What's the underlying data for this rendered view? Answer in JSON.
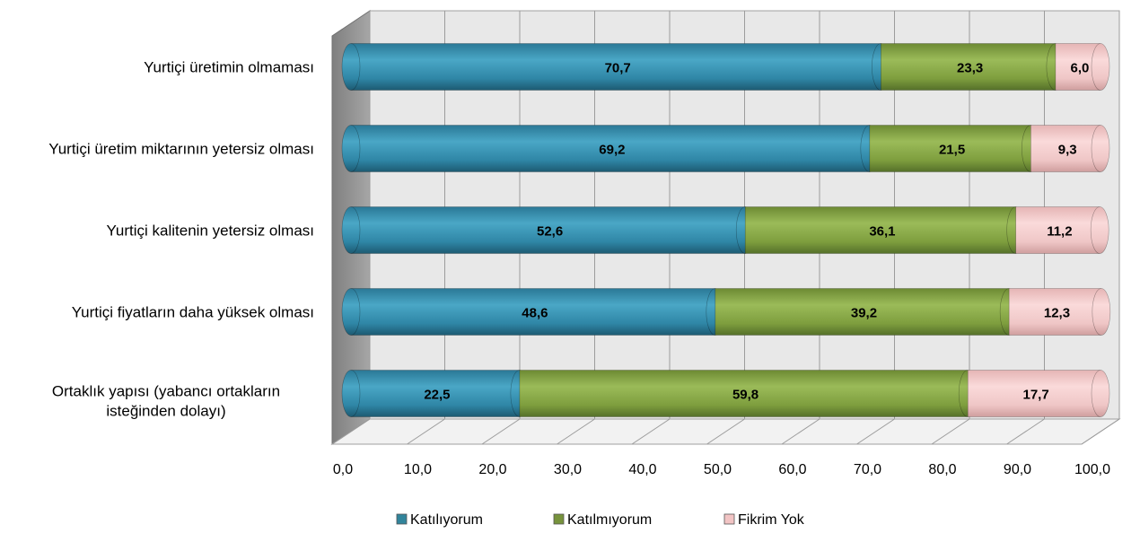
{
  "chart_data": {
    "type": "bar",
    "orientation": "horizontal",
    "stacked": true,
    "categories": [
      "Yurtiçi üretimin olmaması",
      "Yurtiçi üretim miktarının yetersiz olması",
      "Yurtiçi kalitenin yetersiz olması",
      "Yurtiçi fiyatların daha yüksek olması",
      "Ortaklık yapısı (yabancı ortakların isteğinden dolayı)"
    ],
    "series": [
      {
        "name": "Katılıyorum",
        "color": "#31849b",
        "values": [
          70.7,
          69.2,
          52.6,
          48.6,
          22.5
        ]
      },
      {
        "name": "Katılmıyorum",
        "color": "#77933c",
        "values": [
          23.3,
          21.5,
          36.1,
          39.2,
          59.8
        ]
      },
      {
        "name": "Fikrim Yok",
        "color": "#f2c4c4",
        "values": [
          6.0,
          9.3,
          11.2,
          12.3,
          17.7
        ]
      }
    ],
    "value_labels": [
      [
        "70,7",
        "69,2",
        "52,6",
        "48,6",
        "22,5"
      ],
      [
        "23,3",
        "21,5",
        "36,1",
        "39,2",
        "59,8"
      ],
      [
        "6,0",
        "9,3",
        "11,2",
        "12,3",
        "17,7"
      ]
    ],
    "xlim": [
      0,
      100
    ],
    "x_ticks": [
      0,
      10,
      20,
      30,
      40,
      50,
      60,
      70,
      80,
      90,
      100
    ],
    "x_tick_labels": [
      "0,0",
      "10,0",
      "20,0",
      "30,0",
      "40,0",
      "50,0",
      "60,0",
      "70,0",
      "80,0",
      "90,0",
      "100,0"
    ],
    "grid": true,
    "legend_position": "bottom",
    "style": "3d-cylinder",
    "title": "",
    "xlabel": "",
    "ylabel": ""
  }
}
